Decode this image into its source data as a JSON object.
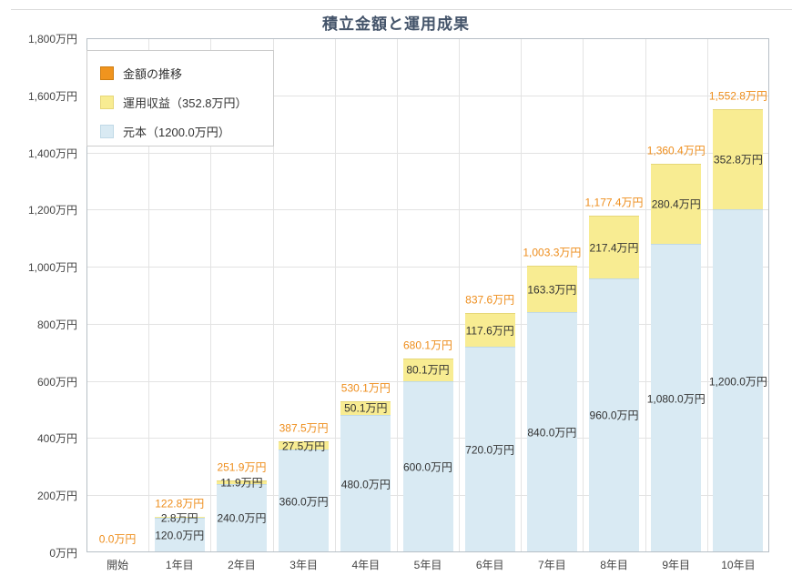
{
  "chart_data": {
    "type": "bar",
    "stacked": true,
    "title": "積立金額と運用成果",
    "unit": "万円",
    "categories": [
      "開始",
      "1年目",
      "2年目",
      "3年目",
      "4年目",
      "5年目",
      "6年目",
      "7年目",
      "8年目",
      "9年目",
      "10年目"
    ],
    "series": [
      {
        "name": "元本",
        "values": [
          0,
          120.0,
          240.0,
          360.0,
          480.0,
          600.0,
          720.0,
          840.0,
          960.0,
          1080.0,
          1200.0
        ]
      },
      {
        "name": "運用収益",
        "values": [
          0,
          2.8,
          11.9,
          27.5,
          50.1,
          80.1,
          117.6,
          163.3,
          217.4,
          280.4,
          352.8
        ]
      }
    ],
    "totals": [
      0.0,
      122.8,
      251.9,
      387.5,
      530.1,
      680.1,
      837.6,
      1003.3,
      1177.4,
      1360.4,
      1552.8
    ],
    "total_labels": [
      "0.0万円",
      "122.8万円",
      "251.9万円",
      "387.5万円",
      "530.1万円",
      "680.1万円",
      "837.6万円",
      "1,003.3万円",
      "1,177.4万円",
      "1,360.4万円",
      "1,552.8万円"
    ],
    "principal_labels": [
      "",
      "120.0万円",
      "240.0万円",
      "360.0万円",
      "480.0万円",
      "600.0万円",
      "720.0万円",
      "840.0万円",
      "960.0万円",
      "1,080.0万円",
      "1,200.0万円"
    ],
    "profit_labels": [
      "",
      "2.8万円",
      "11.9万円",
      "27.5万円",
      "50.1万円",
      "80.1万円",
      "117.6万円",
      "163.3万円",
      "217.4万円",
      "280.4万円",
      "352.8万円"
    ],
    "ylim": [
      0,
      1800
    ],
    "ytick_step": 200,
    "ytick_labels": [
      "0万円",
      "200万円",
      "400万円",
      "600万円",
      "800万円",
      "1,000万円",
      "1,200万円",
      "1,400万円",
      "1,600万円",
      "1,800万円"
    ],
    "grid": true,
    "legend_position": "top-left"
  },
  "legend": [
    {
      "label": "金額の推移"
    },
    {
      "label": "運用収益（352.8万円）"
    },
    {
      "label": "元本（1200.0万円）"
    }
  ],
  "colors": {
    "principal_fill": "#d9eaf3",
    "principal_border": "#c0d9e7",
    "profit_fill": "#f8ec92",
    "profit_border": "#e6d778",
    "total_swatch": "#f0941e",
    "total_swatch_border": "#cf7d10",
    "total_label_text": "#ee8d1b",
    "title_text": "#44546a",
    "axis_text": "#444444",
    "grid_line": "#e3e3e3",
    "plot_border": "#b7bfc6"
  }
}
